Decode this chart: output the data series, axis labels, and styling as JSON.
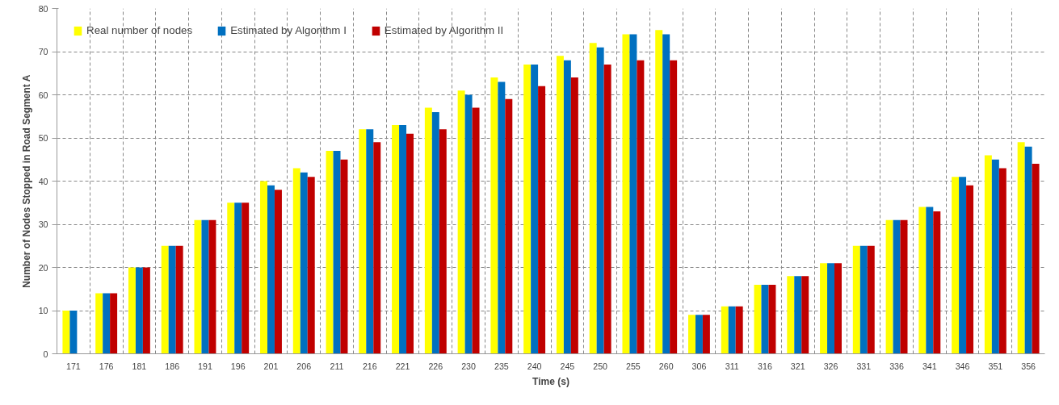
{
  "chart_data": {
    "type": "bar",
    "xlabel": "Time (s)",
    "ylabel": "Number of Nodes Stopped in Road Segment A",
    "categories": [
      "171",
      "176",
      "181",
      "186",
      "191",
      "196",
      "201",
      "206",
      "211",
      "216",
      "221",
      "226",
      "230",
      "235",
      "240",
      "245",
      "250",
      "255",
      "260",
      "306",
      "311",
      "316",
      "321",
      "326",
      "331",
      "336",
      "341",
      "346",
      "351",
      "356"
    ],
    "series": [
      {
        "name": "Real number of nodes",
        "color": "#ffff00",
        "values": [
          10,
          14,
          20,
          25,
          31,
          35,
          40,
          43,
          47,
          52,
          53,
          57,
          61,
          64,
          67,
          69,
          72,
          74,
          75,
          9,
          11,
          16,
          18,
          21,
          25,
          31,
          34,
          41,
          46,
          49
        ]
      },
      {
        "name": "Estimated by Algorithm I",
        "color": "#0070c0",
        "values": [
          10,
          14,
          20,
          25,
          31,
          35,
          39,
          42,
          47,
          52,
          53,
          56,
          60,
          63,
          67,
          68,
          71,
          74,
          74,
          9,
          11,
          16,
          18,
          21,
          25,
          31,
          34,
          41,
          45,
          48
        ]
      },
      {
        "name": "Estimated by Algorithm II",
        "color": "#c00000",
        "values": [
          null,
          14,
          20,
          25,
          31,
          35,
          38,
          41,
          45,
          49,
          51,
          52,
          57,
          59,
          62,
          64,
          67,
          68,
          68,
          9,
          11,
          16,
          18,
          21,
          25,
          31,
          33,
          39,
          43,
          44
        ]
      }
    ],
    "ylim": [
      0,
      80
    ],
    "yticks": [
      0,
      10,
      20,
      30,
      40,
      50,
      60,
      70,
      80
    ],
    "grid": true,
    "legend": "top left"
  }
}
